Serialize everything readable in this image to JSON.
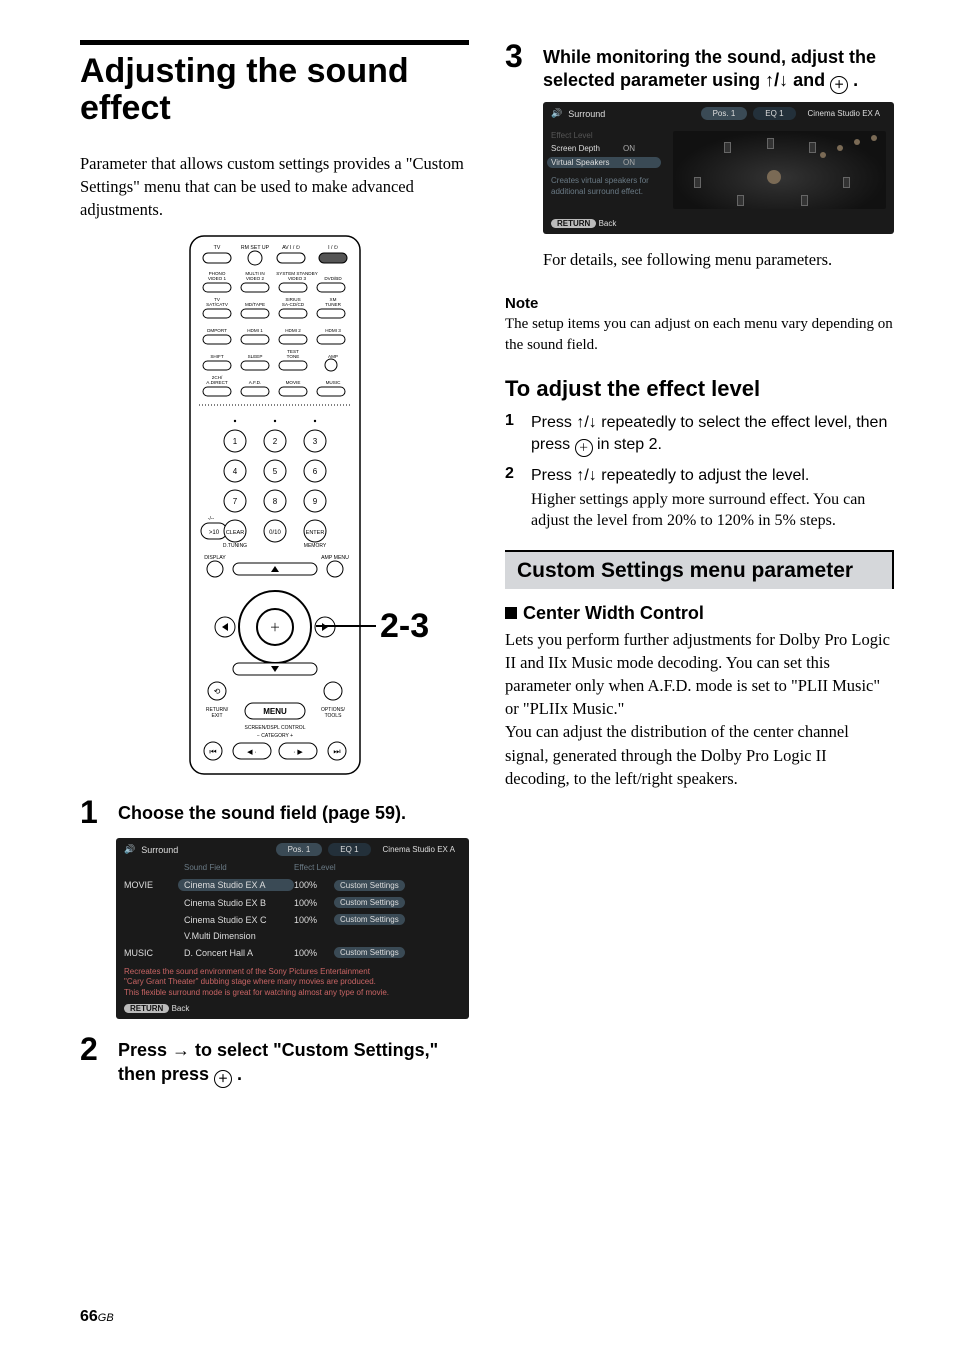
{
  "page_number_bold": "66",
  "page_number_suffix": "GB",
  "left": {
    "title": "Adjusting the sound effect",
    "intro": "Parameter that allows custom settings provides a \"Custom Settings\" menu that can be used to make advanced adjustments.",
    "callout": "2-3",
    "remote": {
      "top_row": [
        "TV",
        "RM SET UP",
        "AV I / ⏻",
        "I / ⏻"
      ],
      "input_rows": [
        [
          "PHONO VIDEO 1",
          "MULTI IN VIDEO 2",
          "SYSTEM STANDBY",
          ""
        ],
        [
          "",
          "",
          "VIDEO 3",
          "DVD/BD"
        ],
        [
          "TV SAT/CATV",
          "MD/TAPE",
          "SIRIUS SA-CD/CD",
          "XM TUNER"
        ],
        [
          "DMPORT",
          "HDMI 1",
          "HDMI 2",
          "HDMI 3"
        ],
        [
          "SHIFT",
          "SLEEP",
          "TEST TONE",
          "AMP"
        ],
        [
          "2CH/ A.DIRECT",
          "A.F.D.",
          "MOVIE",
          "MUSIC"
        ]
      ],
      "numpad": [
        "1",
        "2",
        "3",
        "4",
        "5",
        "6",
        "7",
        "8",
        "9",
        ">10",
        "0/10",
        "ENTER"
      ],
      "numpad_labels_left": "-/-- CLEAR",
      "numpad_labels_bottom": [
        "D.TUNING",
        "",
        "MEMORY"
      ],
      "display": "DISPLAY",
      "amp_menu": "AMP MENU",
      "menu": "MENU",
      "return": "RETURN/ EXIT",
      "options": "OPTIONS/ TOOLS",
      "bottom1": "SCREEN/DSPL CONTROL",
      "bottom2": "− CATEGORY +"
    },
    "step1": {
      "num": "1",
      "text": "Choose the sound field (page 59)."
    },
    "screenshot1": {
      "title": "Surround",
      "tabs": [
        "Pos. 1",
        "EQ 1",
        "Cinema Studio EX A"
      ],
      "col_headers": [
        "",
        "Sound Field",
        "Effect Level",
        ""
      ],
      "rows": [
        {
          "cat": "MOVIE",
          "name": "Cinema Studio EX A",
          "pct": "100%",
          "btn": "Custom Settings",
          "sel": true
        },
        {
          "cat": "",
          "name": "Cinema Studio EX B",
          "pct": "100%",
          "btn": "Custom Settings",
          "sel": false
        },
        {
          "cat": "",
          "name": "Cinema Studio EX C",
          "pct": "100%",
          "btn": "Custom Settings",
          "sel": false
        },
        {
          "cat": "",
          "name": "V.Multi Dimension",
          "pct": "",
          "btn": "",
          "sel": false
        },
        {
          "cat": "MUSIC",
          "name": "D. Concert Hall A",
          "pct": "100%",
          "btn": "Custom Settings",
          "sel": false
        }
      ],
      "desc1": "Recreates the sound environment of the Sony Pictures Entertainment",
      "desc2": "\"Cary Grant Theater\" dubbing stage where many movies are produced.",
      "desc3": "This flexible surround mode is great for watching almost any type of movie.",
      "back_label": "RETURN",
      "back_text": "Back"
    },
    "step2": {
      "num": "2",
      "text_a": "Press ",
      "text_b": " to select \"Custom Settings,\" then press ",
      "text_c": " ."
    }
  },
  "right": {
    "step3": {
      "num": "3",
      "text_a": "While monitoring the sound, adjust the selected parameter using ",
      "text_b": " and ",
      "text_c": " ."
    },
    "screenshot2": {
      "title": "Surround",
      "tabs": [
        "Pos. 1",
        "EQ 1",
        "Cinema Studio EX A"
      ],
      "rows": [
        {
          "lbl": "Effect Level",
          "val": "",
          "sel": false,
          "dim": true
        },
        {
          "lbl": "Screen Depth",
          "val": "ON",
          "sel": false
        },
        {
          "lbl": "Virtual Speakers",
          "val": "ON",
          "sel": true
        }
      ],
      "note": "Creates virtual speakers for additional surround effect.",
      "back_label": "RETURN",
      "back_text": "Back"
    },
    "after_ss": "For details, see following menu parameters.",
    "note_head": "Note",
    "note_body": "The setup items you can adjust on each menu vary depending on the sound field.",
    "sub_title": "To adjust the effect level",
    "substep1": {
      "n": "1",
      "t_a": "Press ",
      "t_b": " repeatedly to select the effect level, then press ",
      "t_c": " in step 2."
    },
    "substep2": {
      "n": "2",
      "t_a": "Press ",
      "t_b": " repeatedly to adjust the level.",
      "detail": "Higher settings apply more surround effect. You can adjust the level from 20% to 120% in 5% steps."
    },
    "section_title": "Custom Settings menu parameter",
    "para_head": "Center Width Control",
    "para_body": "Lets you perform further adjustments for Dolby Pro Logic II and IIx Music mode decoding. You can set this parameter only when A.F.D. mode is set to \"PLII Music\" or \"PLIIx Music.\"\nYou can adjust the distribution of the center channel signal, generated through the Dolby Pro Logic II decoding, to the left/right speakers."
  }
}
